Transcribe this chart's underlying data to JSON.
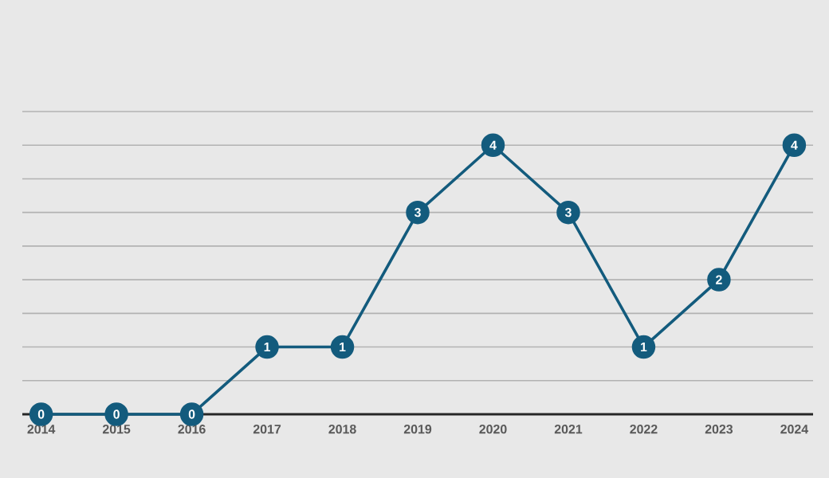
{
  "chart_data": {
    "type": "line",
    "categories": [
      "2014",
      "2015",
      "2016",
      "2017",
      "2018",
      "2019",
      "2020",
      "2021",
      "2022",
      "2023",
      "2024"
    ],
    "series": [
      {
        "color": "#135b7d",
        "values": [
          0,
          0,
          0,
          1,
          1,
          3,
          4,
          3,
          1,
          2,
          4
        ]
      }
    ],
    "ylim": [
      0,
      4.5
    ],
    "yticks": [
      {
        "value": 0,
        "label": null
      },
      {
        "value": 0.5,
        "label": null
      },
      {
        "value": 1,
        "label": null
      },
      {
        "value": 1.5,
        "label": null
      },
      {
        "value": 2,
        "label": null
      },
      {
        "value": 2.5,
        "label": null
      },
      {
        "value": 3,
        "label": null
      },
      {
        "value": 3.5,
        "label": null
      },
      {
        "value": 4,
        "label": null
      },
      {
        "value": 4.5,
        "label": null
      }
    ],
    "tick_labels": "x",
    "grid": "y",
    "marker": "circle",
    "line_style": "solid",
    "data_labels": true
  }
}
